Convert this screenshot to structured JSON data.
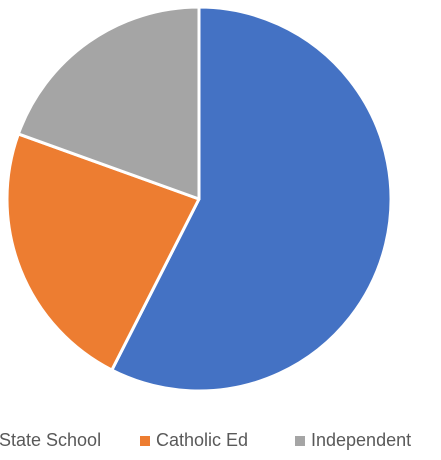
{
  "chart_data": {
    "type": "pie",
    "title": "",
    "legend_placement": "bottom",
    "series": [
      {
        "name": "State School",
        "value": 57.5,
        "color": "#4472C4"
      },
      {
        "name": "Catholic Ed",
        "value": 23,
        "color": "#ED7D31"
      },
      {
        "name": "Independent",
        "value": 19.5,
        "color": "#A5A5A5"
      }
    ],
    "legend_text_color": "#595959",
    "slice_border_color": "#ffffff"
  }
}
